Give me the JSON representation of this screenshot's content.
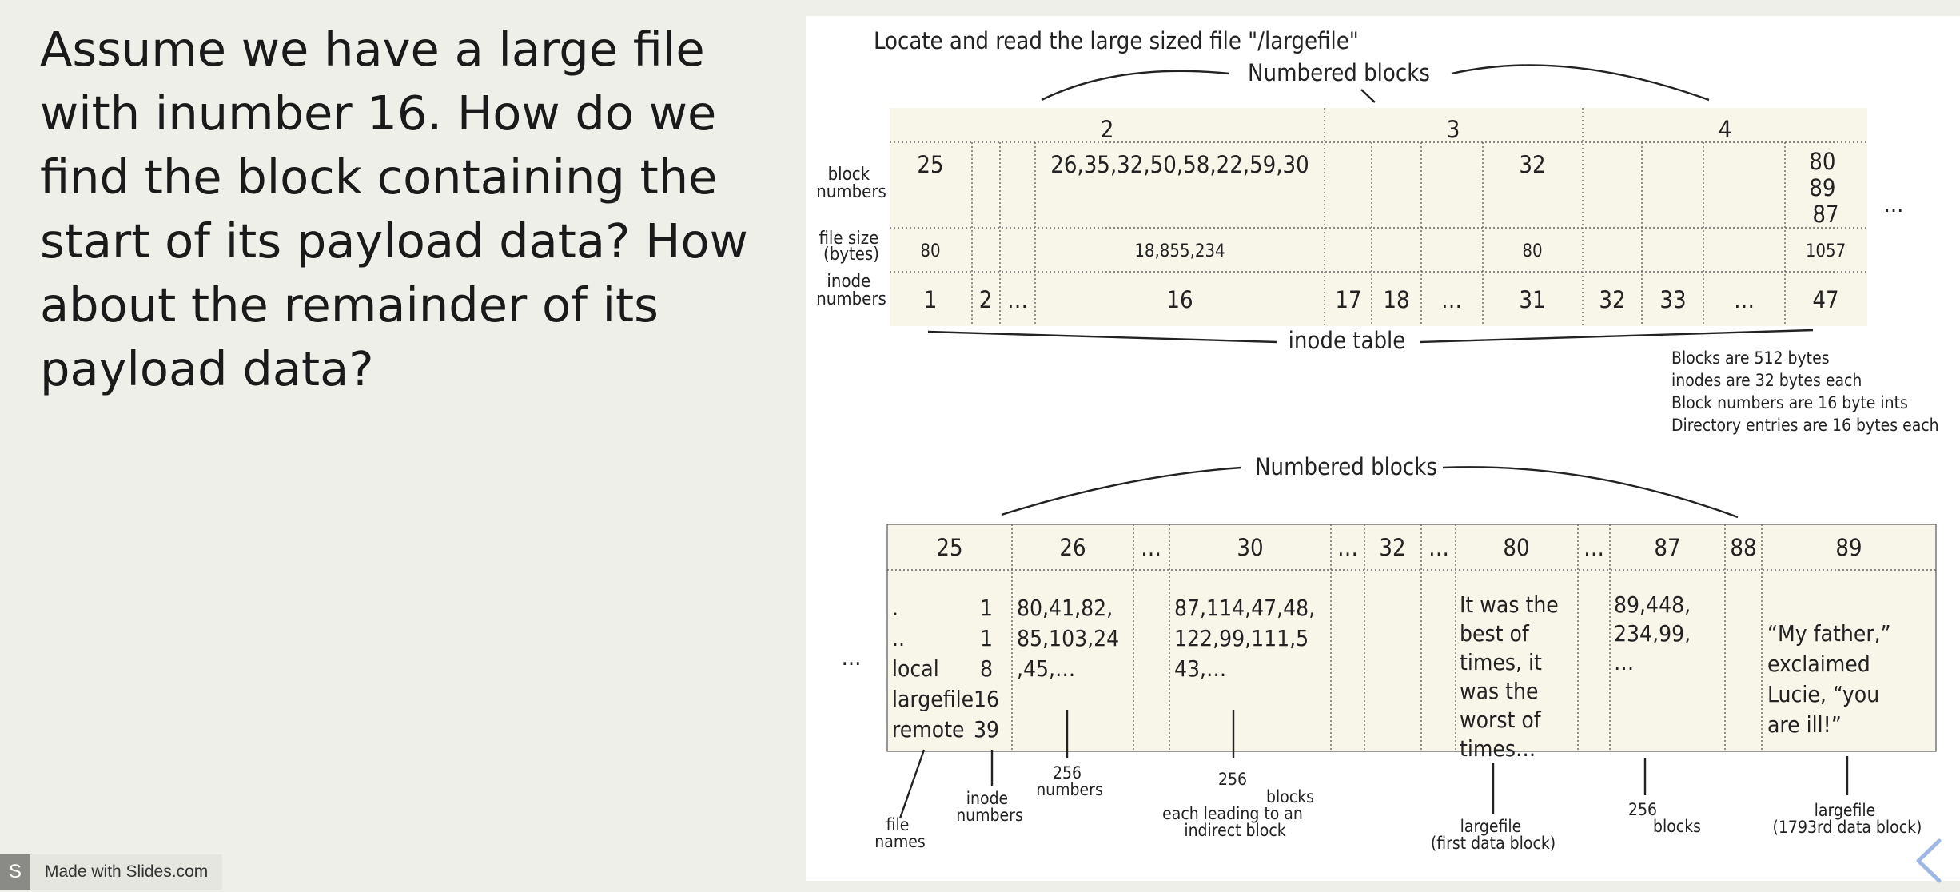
{
  "question": "Assume we have a large file with inumber 16.  How do we find the block containing the start of its payload data?  How about the remainder of its payload data?",
  "figure": {
    "caption": "Locate and read the large sized file \"/largefile\"",
    "top": {
      "brace_label": "Numbered blocks",
      "block_headers": [
        "2",
        "3",
        "4"
      ],
      "row_labels": {
        "block_numbers": [
          "block",
          "numbers"
        ],
        "file_size": [
          "file size",
          "(bytes)"
        ],
        "inode_numbers": [
          "inode",
          "numbers"
        ]
      },
      "columns": [
        {
          "inode": "1",
          "block": [
            "25"
          ],
          "size": "80"
        },
        {
          "inode": "2",
          "block": [
            ""
          ],
          "size": ""
        },
        {
          "inode": "…",
          "block": [
            ""
          ],
          "size": ""
        },
        {
          "inode": "16",
          "block": [
            "26,35,32,50,58,22,59,30"
          ],
          "size": "18,855,234"
        },
        {
          "inode": "17",
          "block": [
            ""
          ],
          "size": ""
        },
        {
          "inode": "18",
          "block": [
            ""
          ],
          "size": ""
        },
        {
          "inode": "…",
          "block": [
            ""
          ],
          "size": ""
        },
        {
          "inode": "31",
          "block": [
            "32"
          ],
          "size": "80"
        },
        {
          "inode": "32",
          "block": [
            ""
          ],
          "size": ""
        },
        {
          "inode": "33",
          "block": [
            ""
          ],
          "size": ""
        },
        {
          "inode": "…",
          "block": [
            ""
          ],
          "size": ""
        },
        {
          "inode": "47",
          "block": [
            "80",
            "89",
            "87"
          ],
          "size": "1057"
        }
      ],
      "ellipsis": "...",
      "table_label": "inode table"
    },
    "notes": [
      "Blocks are 512 bytes",
      "inodes are 32 bytes each",
      "Block numbers are 16 byte ints",
      "Directory entries are 16 bytes each"
    ],
    "bottom": {
      "brace_label": "Numbered blocks",
      "left_ellipsis": "...",
      "headers": [
        "25",
        "26",
        "…",
        "30",
        "…",
        "32",
        "…",
        "80",
        "…",
        "87",
        "88",
        "89"
      ],
      "dir_entries": [
        {
          "name": ".",
          "inode": "1"
        },
        {
          "name": "..",
          "inode": "1"
        },
        {
          "name": "local",
          "inode": "8"
        },
        {
          "name": "largefile",
          "inode": "16"
        },
        {
          "name": "remote",
          "inode": "39"
        }
      ],
      "block26": [
        "80,41,82,",
        "85,103,24",
        ",45,…"
      ],
      "block30": [
        "87,114,47,48,",
        "122,99,111,5",
        "43,…"
      ],
      "block80": [
        "It was the",
        "best of",
        "times, it",
        "was the",
        "worst of",
        "times…"
      ],
      "block87": [
        "89,448,",
        "234,99,",
        "…"
      ],
      "block89": [
        "“My father,”",
        "exclaimed",
        "Lucie, “you",
        "are ill!”"
      ],
      "annotations": {
        "file_names": [
          "file",
          "names"
        ],
        "inode_numbers": [
          "inode",
          "numbers"
        ],
        "b26": [
          "256",
          "numbers"
        ],
        "b30": [
          "256",
          "blocks",
          "each leading to an",
          "indirect block"
        ],
        "b80": [
          "largefile",
          "(first data block)"
        ],
        "b87": [
          "256",
          "blocks"
        ],
        "b89": [
          "largefile",
          "(1793rd data block)"
        ]
      }
    }
  },
  "footer": {
    "logo_letter": "S",
    "made_with": "Made with Slides.com"
  },
  "colors": {
    "background": "#efefea",
    "table_fill": "#f8f6e8",
    "arrow": "#9db7e6"
  }
}
